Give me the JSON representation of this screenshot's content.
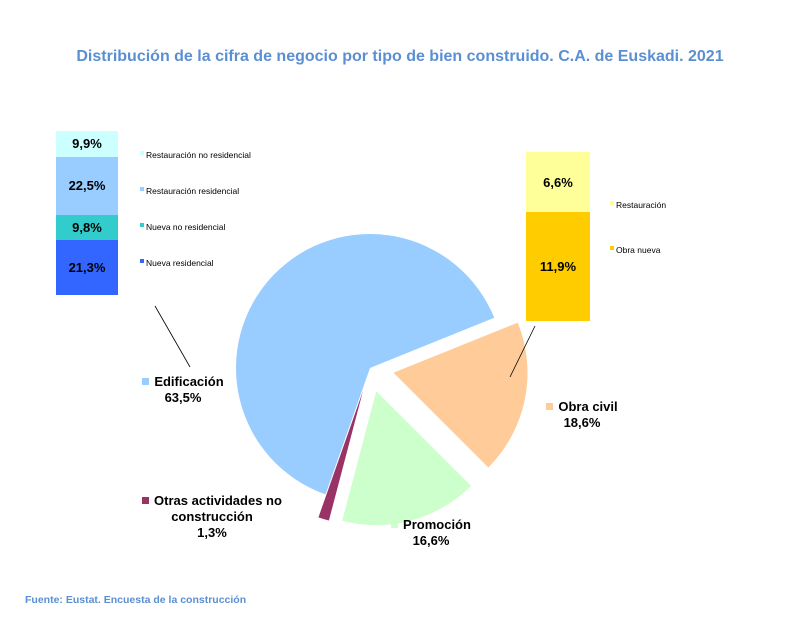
{
  "title": "Distribución de la cifra de negocio por tipo de bien construido. C.A. de Euskadi. 2021",
  "source": "Fuente: Eustat. Encuesta de la construcción",
  "chart_data": [
    {
      "type": "pie",
      "slices": [
        {
          "label": "Edificación",
          "value": 63.5,
          "value_label": "63,5%",
          "color": "#99ccff",
          "exploded": false
        },
        {
          "label": "Obra civil",
          "value": 18.6,
          "value_label": "18,6%",
          "color": "#ffcc99",
          "exploded": true
        },
        {
          "label": "Promoción",
          "value": 16.6,
          "value_label": "16,6%",
          "color": "#ccffcc",
          "exploded": true
        },
        {
          "label": "Otras actividades no construcción",
          "value": 1.3,
          "value_label": "1,3%",
          "color": "#993366",
          "exploded": true
        }
      ]
    },
    {
      "type": "bar",
      "stacked": true,
      "breakdown_of": "Edificación",
      "series": [
        {
          "name": "Nueva residencial",
          "value": 21.3,
          "value_label": "21,3%",
          "color": "#3366ff"
        },
        {
          "name": "Nueva no residencial",
          "value": 9.8,
          "value_label": "9,8%",
          "color": "#33cccc"
        },
        {
          "name": "Restauración residencial",
          "value": 22.5,
          "value_label": "22,5%",
          "color": "#99ccff"
        },
        {
          "name": "Restauración no residencial",
          "value": 9.9,
          "value_label": "9,9%",
          "color": "#ccffff"
        }
      ]
    },
    {
      "type": "bar",
      "stacked": true,
      "breakdown_of": "Obra civil",
      "series": [
        {
          "name": "Obra nueva",
          "value": 11.9,
          "value_label": "11,9%",
          "color": "#ffcc00"
        },
        {
          "name": "Restauración",
          "value": 6.6,
          "value_label": "6,6%",
          "color": "#ffff99"
        }
      ]
    }
  ]
}
